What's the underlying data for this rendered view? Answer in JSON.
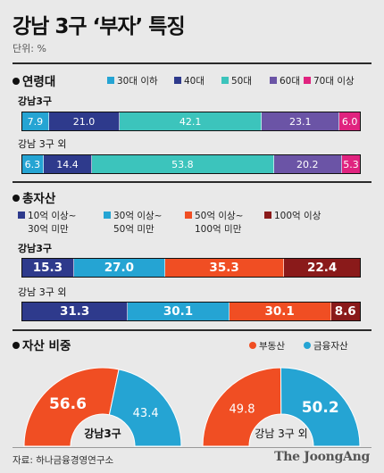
{
  "header": {
    "title": "강남 3구 ‘부자’ 특징",
    "unit": "단위: %"
  },
  "colors": {
    "age": [
      "#25a4d3",
      "#2e3a8c",
      "#3cc4bc",
      "#6b54a6",
      "#e0237f"
    ],
    "asset": [
      "#2e3a8c",
      "#25a4d3",
      "#f04e23",
      "#8a1a1a"
    ],
    "ratio": [
      "#f04e23",
      "#25a4d3"
    ]
  },
  "sections": {
    "age": "연령대",
    "asset": "총자산",
    "ratio": "자산 비중"
  },
  "chart_data": [
    {
      "type": "bar",
      "subtype": "stacked-horizontal-100",
      "title": "연령대",
      "categories": [
        "강남3구",
        "강남 3구 외"
      ],
      "series": [
        {
          "name": "30대 이하",
          "values": [
            7.9,
            6.3
          ]
        },
        {
          "name": "40대",
          "values": [
            21.0,
            14.4
          ]
        },
        {
          "name": "50대",
          "values": [
            42.1,
            53.8
          ]
        },
        {
          "name": "60대",
          "values": [
            23.1,
            20.2
          ]
        },
        {
          "name": "70대 이상",
          "values": [
            6.0,
            5.3
          ]
        }
      ],
      "labels": [
        [
          "7.9",
          "21.0",
          "42.1",
          "23.1",
          "6.0"
        ],
        [
          "6.3",
          "14.4",
          "53.8",
          "20.2",
          "5.3"
        ]
      ],
      "legend": "top-right"
    },
    {
      "type": "bar",
      "subtype": "stacked-horizontal-100",
      "title": "총자산",
      "categories": [
        "강남3구",
        "강남 3구 외"
      ],
      "series": [
        {
          "name": "10억 이상~ 30억 미만",
          "name_lines": [
            "10억 이상~",
            "30억 미만"
          ],
          "values": [
            15.3,
            31.3
          ]
        },
        {
          "name": "30억 이상~ 50억 미만",
          "name_lines": [
            "30억 이상~",
            "50억 미만"
          ],
          "values": [
            27.0,
            30.1
          ]
        },
        {
          "name": "50억 이상~ 100억 미만",
          "name_lines": [
            "50억 이상~",
            "100억 미만"
          ],
          "values": [
            35.3,
            30.1
          ]
        },
        {
          "name": "100억 이상",
          "name_lines": [
            "100억 이상"
          ],
          "values": [
            22.4,
            8.6
          ]
        }
      ],
      "labels": [
        [
          "15.3",
          "27.0",
          "35.3",
          "22.4"
        ],
        [
          "31.3",
          "30.1",
          "30.1",
          "8.6"
        ]
      ],
      "legend": "top"
    },
    {
      "type": "pie",
      "subtype": "semi-donut",
      "title": "자산 비중",
      "series_names": [
        "부동산",
        "금융자산"
      ],
      "pies": [
        {
          "label": "강남3구",
          "values": [
            56.6,
            43.4
          ],
          "texts": [
            "56.6",
            "43.4"
          ]
        },
        {
          "label": "강남 3구 외",
          "values": [
            49.8,
            50.2
          ],
          "texts": [
            "49.8",
            "50.2"
          ]
        }
      ],
      "legend": "top-right"
    }
  ],
  "footer": {
    "source": "자료: 하나금융경영연구소",
    "brand": "The JoongAng"
  }
}
